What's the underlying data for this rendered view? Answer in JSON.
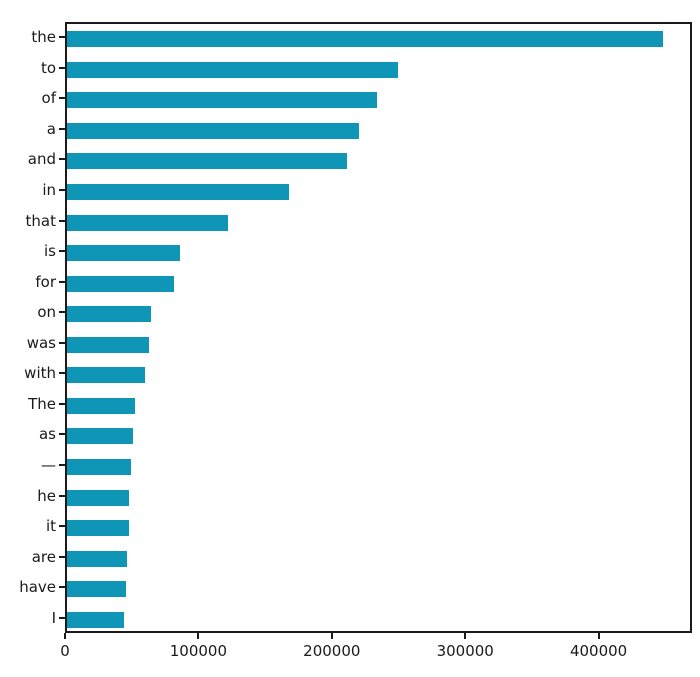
{
  "chart_data": {
    "type": "bar",
    "orientation": "horizontal",
    "title": "",
    "xlabel": "",
    "ylabel": "",
    "grid": false,
    "legend": null,
    "bar_color": "#0f95b5",
    "axis_color": "#1a1a1a",
    "xlim": [
      0,
      470000
    ],
    "xticks": [
      0,
      100000,
      200000,
      300000,
      400000
    ],
    "xtick_labels": [
      "0",
      "100000",
      "200000",
      "300000",
      "400000"
    ],
    "categories": [
      "the",
      "to",
      "of",
      "a",
      "and",
      "in",
      "that",
      "is",
      "for",
      "on",
      "was",
      "with",
      "The",
      "as",
      "—",
      "he",
      "it",
      "are",
      "have",
      "I"
    ],
    "values": [
      450000,
      250000,
      234000,
      220000,
      211000,
      167500,
      121500,
      85500,
      81000,
      63000,
      62000,
      58500,
      51000,
      49500,
      48000,
      47000,
      47000,
      45000,
      44500,
      43000
    ]
  }
}
